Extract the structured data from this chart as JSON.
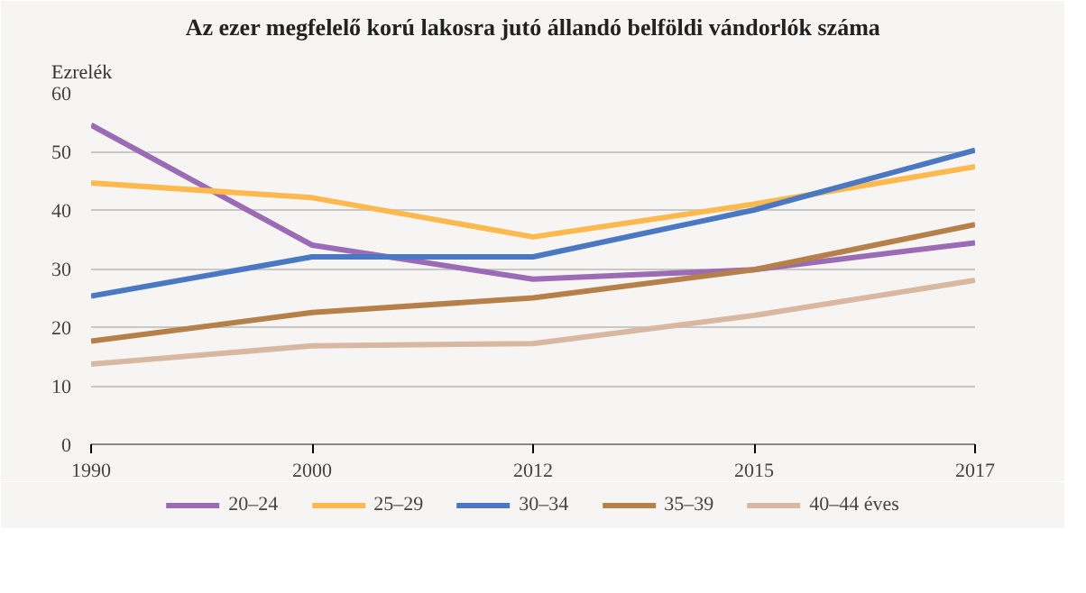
{
  "chart_data": {
    "type": "line",
    "title": "Az ezer megfelelő korú lakosra jutó állandó belföldi vándorlók száma",
    "ylabel": "Ezrelék",
    "categories": [
      "1990",
      "2000",
      "2012",
      "2015",
      "2017"
    ],
    "series": [
      {
        "name": "20–24",
        "color": "#9b6bb5",
        "values": [
          54.5,
          34,
          28.2,
          29.8,
          34.4
        ]
      },
      {
        "name": "25–29",
        "color": "#fdb94e",
        "values": [
          44.6,
          42.1,
          35.4,
          41,
          47.4
        ]
      },
      {
        "name": "30–34",
        "color": "#4a78c2",
        "values": [
          25.3,
          32,
          32,
          40,
          50.2
        ]
      },
      {
        "name": "35–39",
        "color": "#b5804a",
        "values": [
          17.6,
          22.5,
          25,
          29.8,
          37.5
        ]
      },
      {
        "name": "40–44 éves",
        "color": "#d9b8a2",
        "values": [
          13.7,
          16.8,
          17.2,
          22,
          28
        ]
      }
    ],
    "ylim": [
      0,
      60
    ],
    "yticks": [
      0,
      10,
      20,
      30,
      40,
      50,
      60
    ],
    "grid": "y",
    "legend": "bottom"
  }
}
